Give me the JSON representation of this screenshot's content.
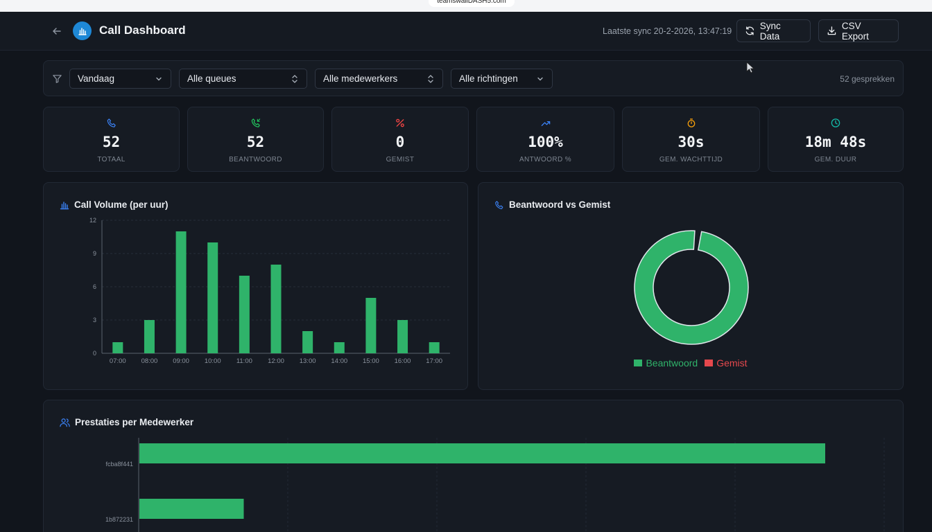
{
  "browser": {
    "url": "teamswallDASH5.com"
  },
  "header": {
    "title": "Call Dashboard",
    "sync_text": "Laatste sync 20-2-2026, 13:47:19",
    "sync_button": "Sync Data",
    "csv_button": "CSV Export",
    "icons": [
      "arrow-left-icon",
      "bar-chart-icon",
      "refresh-icon",
      "download-icon"
    ]
  },
  "filters": {
    "period": "Vandaag",
    "queue": "Alle queues",
    "agent": "Alle medewerkers",
    "direction": "Alle richtingen",
    "count": "52 gesprekken"
  },
  "kpis": [
    {
      "value": "52",
      "label": "Totaal",
      "icon": "phone-icon",
      "color": "#3b82f6"
    },
    {
      "value": "52",
      "label": "Beantwoord",
      "icon": "phone-incoming-icon",
      "color": "#22c55e"
    },
    {
      "value": "0",
      "label": "Gemist",
      "icon": "percent-icon",
      "color": "#ef4444"
    },
    {
      "value": "100%",
      "label": "Antwoord %",
      "icon": "trend-up-icon",
      "color": "#3b82f6"
    },
    {
      "value": "30s",
      "label": "Gem. wachttijd",
      "icon": "timer-icon",
      "color": "#f59e0b"
    },
    {
      "value": "18m 48s",
      "label": "Gem. duur",
      "icon": "clock-icon",
      "color": "#14b8a6"
    }
  ],
  "colors": {
    "answered": "#2fb36a",
    "missed": "#e5484d",
    "background": "#11151c",
    "panel": "#161b23"
  },
  "volume_panel": {
    "title": "Call Volume (per uur)"
  },
  "ratio_panel": {
    "title": "Beantwoord vs Gemist"
  },
  "agents_panel": {
    "title": "Prestaties per Medewerker"
  },
  "chart_data": [
    {
      "type": "bar",
      "title": "Call Volume (per uur)",
      "categories": [
        "07:00",
        "08:00",
        "09:00",
        "10:00",
        "11:00",
        "12:00",
        "13:00",
        "14:00",
        "15:00",
        "16:00",
        "17:00"
      ],
      "values": [
        1,
        3,
        11,
        10,
        7,
        8,
        2,
        1,
        5,
        3,
        1
      ],
      "yticks": [
        0,
        3,
        6,
        9,
        12
      ],
      "ylim": [
        0,
        12
      ],
      "grid": true
    },
    {
      "type": "pie",
      "title": "Beantwoord vs Gemist",
      "categories": [
        "Beantwoord",
        "Gemist"
      ],
      "values": [
        52,
        0
      ],
      "legend": "bottom"
    },
    {
      "type": "bar",
      "orientation": "horizontal",
      "title": "Prestaties per Medewerker",
      "categories": [
        "fcba8f441",
        "1b872231"
      ],
      "values": [
        46,
        7
      ],
      "xlim": [
        0,
        50
      ]
    }
  ]
}
